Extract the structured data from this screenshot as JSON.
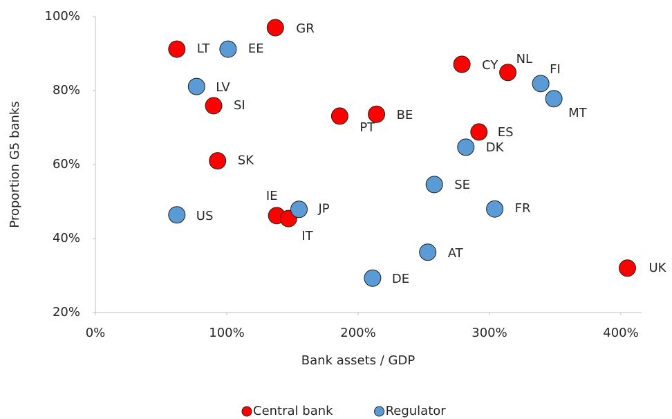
{
  "chart_data": {
    "type": "scatter",
    "xlabel": "Bank assets / GDP",
    "ylabel": "Proportion G5 banks",
    "xlim": [
      0,
      416
    ],
    "ylim": [
      20,
      100
    ],
    "xticks": [
      {
        "value": 0,
        "label": "0%"
      },
      {
        "value": 100,
        "label": "100%"
      },
      {
        "value": 200,
        "label": "200%"
      },
      {
        "value": 300,
        "label": "300%"
      },
      {
        "value": 400,
        "label": "400%"
      }
    ],
    "yticks": [
      {
        "value": 20,
        "label": "20%"
      },
      {
        "value": 40,
        "label": "40%"
      },
      {
        "value": 60,
        "label": "60%"
      },
      {
        "value": 80,
        "label": "80%"
      },
      {
        "value": 100,
        "label": "100%"
      }
    ],
    "legend": "bottom",
    "series": [
      {
        "name": "Central bank",
        "color": "#ff0000",
        "labels": [
          "LT",
          "GR",
          "SI",
          "SK",
          "IE",
          "IT",
          "PT",
          "BE",
          "CY",
          "NL",
          "ES",
          "UK"
        ],
        "x": [
          62,
          137,
          90,
          93,
          138,
          147,
          186,
          214,
          279,
          314,
          292,
          405
        ],
        "values": [
          91.2,
          97,
          75.9,
          61,
          46.2,
          45.4,
          73.1,
          73.6,
          87.1,
          84.9,
          68.8,
          32
        ]
      },
      {
        "name": "Regulator",
        "color": "#5b9bd5",
        "labels": [
          "EE",
          "LV",
          "US",
          "JP",
          "SE",
          "DK",
          "FI",
          "MT",
          "FR",
          "AT",
          "DE"
        ],
        "x": [
          101,
          77,
          62,
          155,
          258,
          282,
          339,
          349,
          304,
          253,
          211
        ],
        "values": [
          91.2,
          81.1,
          46.4,
          47.9,
          54.6,
          64.7,
          81.9,
          77.8,
          48,
          36.3,
          29.3
        ]
      }
    ]
  }
}
